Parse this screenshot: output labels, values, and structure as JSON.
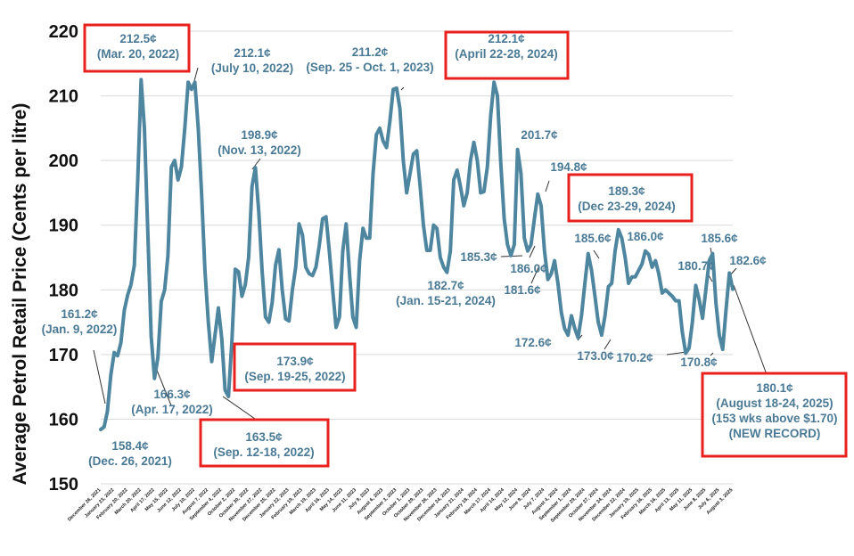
{
  "chart_data": {
    "type": "line",
    "ylabel": "Average Petrol Retail Price (Cents per litre)",
    "ylim": [
      150,
      220
    ],
    "yticks": [
      "150",
      "160",
      "170",
      "180",
      "190",
      "200",
      "210",
      "220"
    ],
    "grid": true,
    "series_color": "#4e86a0",
    "highlight_box_color": "#e8201e",
    "x_tick_labels": [
      "December 26, 2021",
      "January 23, 2022",
      "February 20, 2022",
      "March 20, 2022",
      "April 17, 2022",
      "May 15, 2022",
      "June 12, 2022",
      "July 10, 2022",
      "August 7, 2022",
      "September 4, 2022",
      "October 2, 2022",
      "October 30, 2022",
      "November 27, 2022",
      "December 25, 2022",
      "January 22, 2023",
      "February 19, 2023",
      "March 19, 2023",
      "April 16, 2023",
      "May 14, 2023",
      "June 11, 2023",
      "July 9, 2023",
      "August 6, 2023",
      "September 3, 2023",
      "October 1, 2023",
      "October 29, 2023",
      "November 26, 2023",
      "December 24, 2023",
      "January 21, 2024",
      "February 18, 2024",
      "March 17, 2024",
      "April 14, 2024",
      "May 12, 2024",
      "June 9, 2024",
      "July 7, 2024",
      "August 4, 2024",
      "September 1, 2024",
      "September 29, 2024",
      "October 27, 2024",
      "November 24, 2024",
      "December 22, 2024",
      "January 19, 2025",
      "February 16, 2025",
      "March 16, 2025",
      "April 13, 2025",
      "May 11, 2025",
      "June 8, 2025",
      "July 6, 2025",
      "August 3, 2025"
    ],
    "series": [
      {
        "values": [
          158.4,
          158.8,
          161.2,
          166.8,
          170.3,
          169.8,
          171.8,
          176.8,
          179.2,
          180.8,
          183.8,
          197.0,
          212.5,
          205.0,
          189.0,
          172.8,
          166.3,
          169.5,
          178.2,
          180.0,
          185.3,
          199.0,
          200.0,
          197.0,
          199.0,
          205.0,
          212.1,
          211.0,
          212.1,
          205.0,
          195.0,
          183.0,
          175.0,
          168.9,
          173.0,
          177.2,
          172.4,
          164.5,
          163.5,
          172.0,
          183.2,
          182.8,
          179.0,
          180.8,
          185.0,
          196.0,
          198.9,
          192.0,
          183.0,
          175.8,
          175.0,
          178.0,
          183.8,
          186.2,
          180.0,
          175.5,
          175.2,
          180.0,
          183.5,
          190.2,
          188.5,
          183.5,
          182.5,
          182.2,
          183.5,
          186.8,
          191.0,
          191.3,
          186.0,
          180.0,
          174.2,
          175.8,
          186.0,
          190.2,
          182.5,
          175.8,
          174.2,
          184.5,
          189.5,
          188.0,
          188.0,
          198.0,
          204.0,
          205.0,
          203.0,
          202.0,
          206.0,
          211.0,
          211.2,
          208.0,
          200.0,
          195.0,
          198.0,
          201.0,
          201.5,
          196.0,
          190.0,
          186.1,
          186.1,
          190.0,
          189.5,
          185.0,
          183.5,
          182.7,
          186.0,
          197.0,
          198.5,
          196.0,
          193.0,
          195.0,
          200.0,
          202.8,
          200.0,
          195.0,
          195.2,
          199.0,
          207.0,
          212.1,
          210.0,
          199.5,
          191.0,
          187.0,
          185.3,
          187.0,
          201.7,
          198.0,
          188.0,
          186.0,
          187.0,
          191.0,
          194.8,
          193.0,
          186.0,
          181.6,
          182.5,
          184.5,
          181.0,
          176.5,
          174.0,
          173.0,
          176.0,
          174.0,
          172.6,
          176.0,
          181.0,
          185.6,
          183.0,
          179.0,
          175.0,
          173.0,
          176.0,
          180.5,
          181.0,
          186.0,
          189.3,
          188.0,
          185.0,
          181.0,
          182.0,
          182.0,
          183.0,
          184.0,
          186.0,
          185.5,
          183.5,
          184.5,
          182.5,
          179.5,
          180.0,
          179.5,
          179.0,
          178.3,
          178.3,
          173.5,
          170.2,
          171.0,
          175.0,
          180.7,
          178.5,
          175.6,
          180.0,
          184.5,
          185.6,
          178.0,
          173.0,
          170.8,
          177.0,
          182.6,
          180.1
        ]
      }
    ],
    "annotations": [
      {
        "line1": "212.5¢",
        "line2": "(Mar. 20, 2022)",
        "boxed": true
      },
      {
        "line1": "212.1¢",
        "line2": "(July 10, 2022)",
        "boxed": false
      },
      {
        "line1": "161.2¢",
        "line2": "(Jan. 9, 2022)",
        "boxed": false
      },
      {
        "line1": "158.4¢",
        "line2": "(Dec. 26, 2021)",
        "boxed": false
      },
      {
        "line1": "166.3¢",
        "line2": "(Apr. 17, 2022)",
        "boxed": false
      },
      {
        "line1": "198.9¢",
        "line2": "(Nov. 13, 2022)",
        "boxed": false
      },
      {
        "line1": "173.9¢",
        "line2": "(Sep. 19-25, 2022)",
        "boxed": true
      },
      {
        "line1": "163.5¢",
        "line2": "(Sep. 12-18, 2022)",
        "boxed": true
      },
      {
        "line1": "211.2¢",
        "line2": "(Sep. 25 - Oct. 1, 2023)",
        "boxed": false
      },
      {
        "line1": "212.1¢",
        "line2": "(April 22-28, 2024)",
        "boxed": true
      },
      {
        "line1": "182.7¢",
        "line2": "(Jan. 15-21, 2024)",
        "boxed": false
      },
      {
        "line1": "201.7¢",
        "line2": "",
        "boxed": false
      },
      {
        "line1": "194.8¢",
        "line2": "",
        "boxed": false
      },
      {
        "line1": "185.3¢",
        "line2": "",
        "boxed": false
      },
      {
        "line1": "186.0¢",
        "line2": "",
        "boxed": false
      },
      {
        "line1": "181.6¢",
        "line2": "",
        "boxed": false
      },
      {
        "line1": "172.6¢",
        "line2": "",
        "boxed": false
      },
      {
        "line1": "189.3¢",
        "line2": "(Dec 23-29, 2024)",
        "boxed": true
      },
      {
        "line1": "185.6¢",
        "line2": "",
        "boxed": false
      },
      {
        "line1": "186.0¢",
        "line2": "",
        "boxed": false
      },
      {
        "line1": "173.0¢",
        "line2": "",
        "boxed": false
      },
      {
        "line1": "185.6¢",
        "line2": "",
        "boxed": false
      },
      {
        "line1": "180.7¢",
        "line2": "",
        "boxed": false
      },
      {
        "line1": "182.6¢",
        "line2": "",
        "boxed": false
      },
      {
        "line1": "170.2¢",
        "line2": "",
        "boxed": false
      },
      {
        "line1": "170.8¢",
        "line2": "",
        "boxed": false
      },
      {
        "line1": "180.1¢",
        "line2": "(August 18-24, 2025)",
        "line3": "(153 wks above $1.70)",
        "line4": "(NEW RECORD)",
        "boxed": true
      }
    ]
  }
}
